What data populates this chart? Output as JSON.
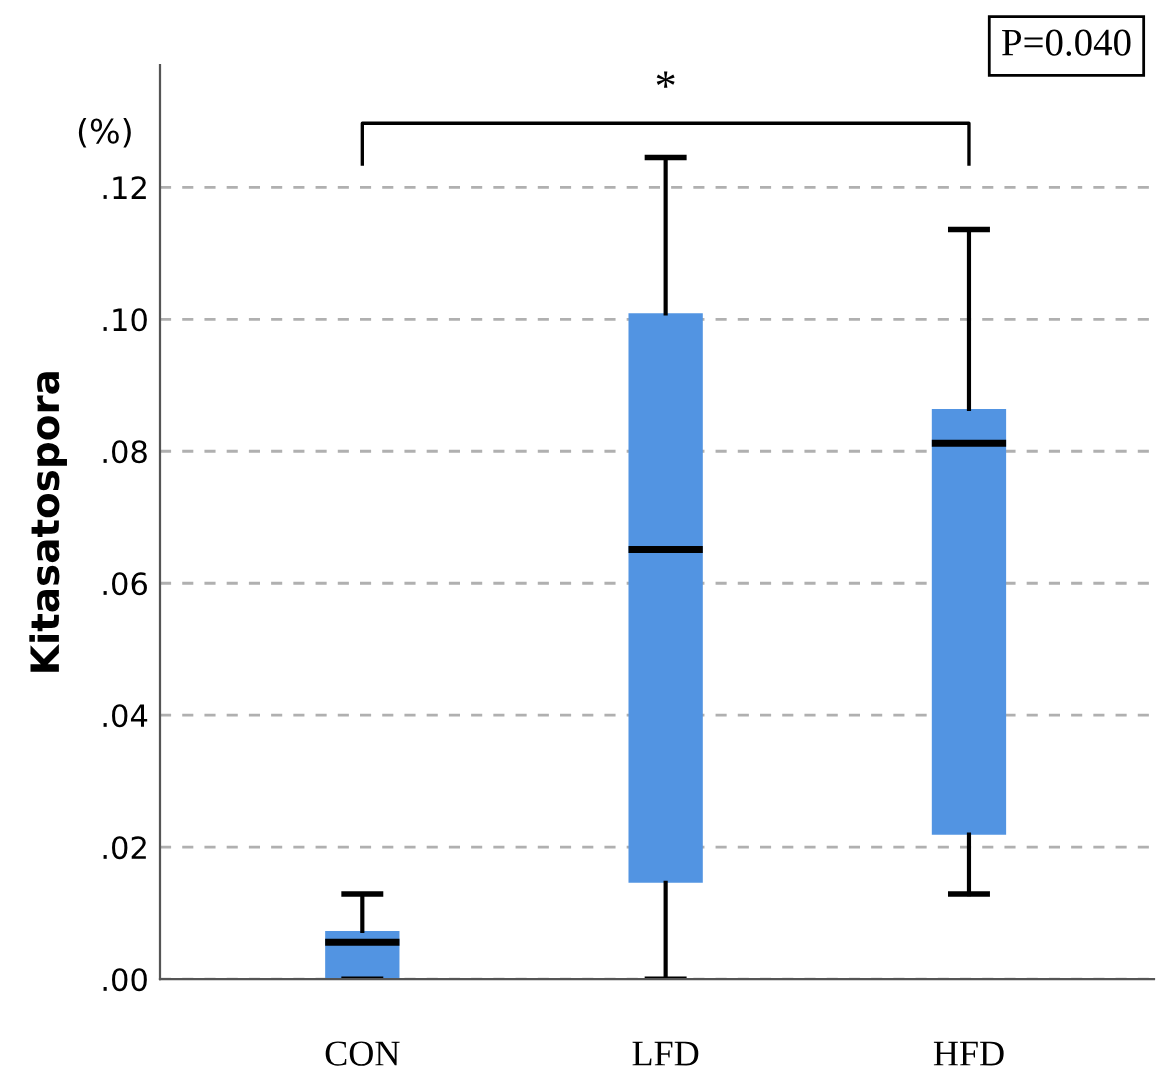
{
  "chart_data": {
    "type": "box",
    "ylabel": "Kitasatospora",
    "categories": [
      "CON",
      "LFD",
      "HFD"
    ],
    "series": [
      {
        "color": "#5294e2",
        "boxes": [
          {
            "low": 0.0,
            "q1": 0.0,
            "median": 0.0056,
            "q3": 0.0073,
            "high": 0.0129
          },
          {
            "low": 0.0,
            "q1": 0.0146,
            "median": 0.0651,
            "q3": 0.1009,
            "high": 0.1245
          },
          {
            "low": 0.0129,
            "q1": 0.0219,
            "median": 0.0812,
            "q3": 0.0864,
            "high": 0.1136
          }
        ]
      }
    ],
    "ylim": [
      0,
      0.1385
    ],
    "yticks": [
      {
        "value": 0,
        "label": ".00"
      },
      {
        "value": 0.02,
        "label": ".02"
      },
      {
        "value": 0.04,
        "label": ".04"
      },
      {
        "value": 0.06,
        "label": ".06"
      },
      {
        "value": 0.08,
        "label": ".08"
      },
      {
        "value": 0.1,
        "label": ".10"
      },
      {
        "value": 0.12,
        "label": ".12"
      }
    ],
    "grid": "y",
    "annotations": [
      "(%)",
      "*",
      "P=0.040"
    ]
  }
}
